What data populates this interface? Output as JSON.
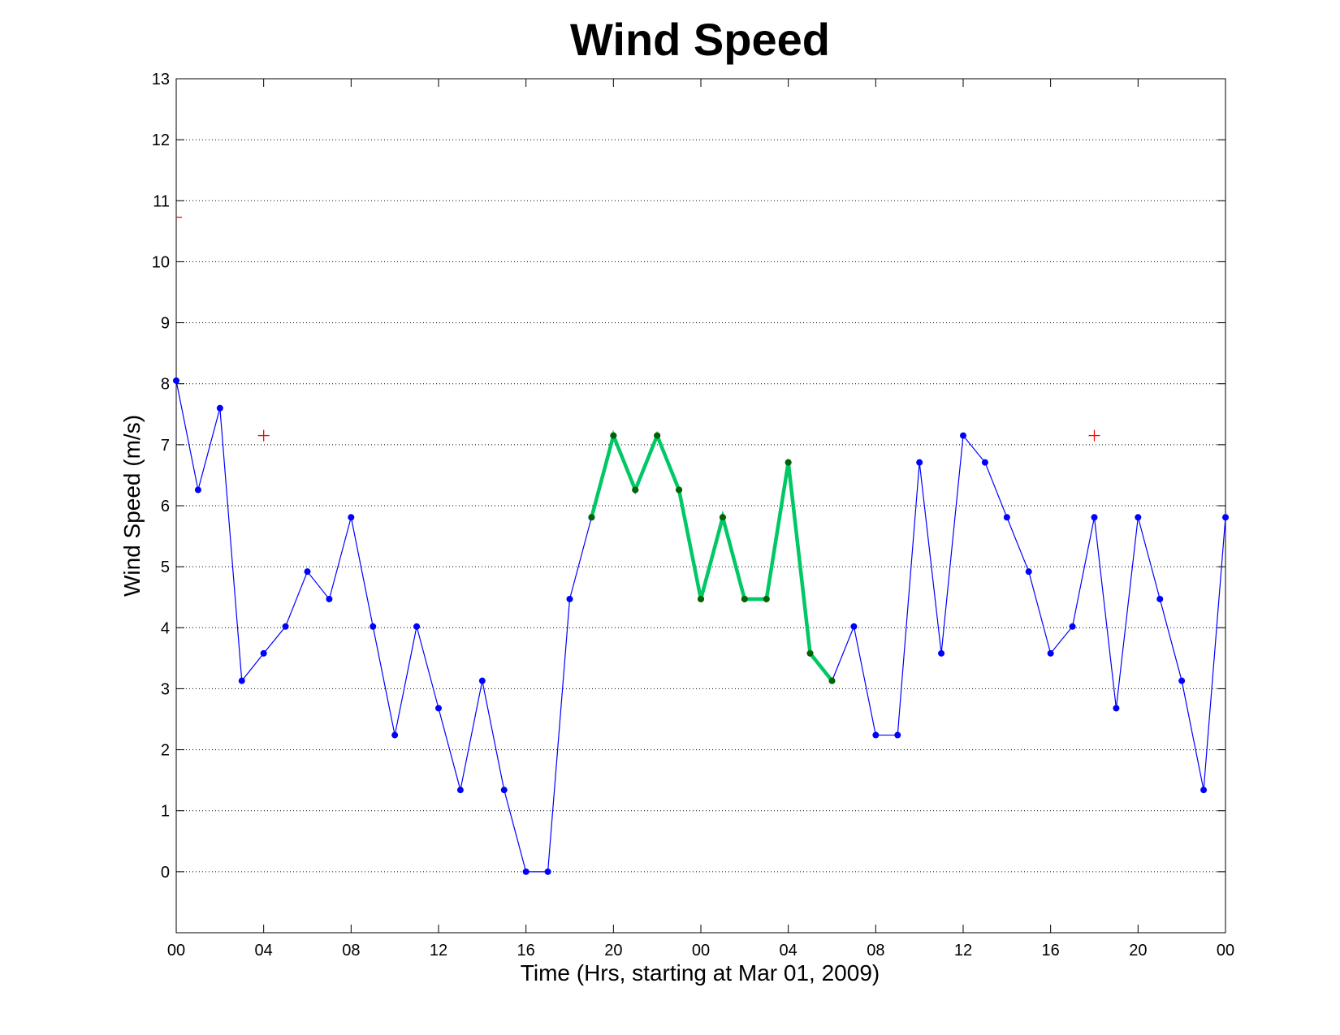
{
  "chart_data": {
    "type": "line",
    "title": "Wind Speed",
    "xlabel": "Time (Hrs, starting at Mar 01, 2009)",
    "ylabel": "Wind Speed (m/s)",
    "ylim": [
      -1,
      13
    ],
    "xlim": [
      0,
      48
    ],
    "grid": "y-dotted",
    "x_tick_positions": [
      0,
      4,
      8,
      12,
      16,
      20,
      24,
      28,
      32,
      36,
      40,
      44,
      48
    ],
    "x_tick_labels": [
      "00",
      "04",
      "08",
      "12",
      "16",
      "20",
      "00",
      "04",
      "08",
      "12",
      "16",
      "20",
      "00"
    ],
    "y_ticks": [
      0,
      1,
      2,
      3,
      4,
      5,
      6,
      7,
      8,
      9,
      10,
      11,
      12,
      13
    ],
    "series": [
      {
        "style": "blue-dots-line",
        "color": "#0000ff",
        "x": [
          0,
          1,
          2,
          3,
          4,
          5,
          6,
          7,
          8,
          9,
          10,
          11,
          12,
          13,
          14,
          15,
          16,
          17,
          18,
          19,
          20,
          21,
          22,
          23,
          24,
          25,
          26,
          27,
          28,
          29,
          30,
          31,
          32,
          33,
          34,
          35,
          36,
          37,
          38,
          39,
          40,
          41,
          42,
          43,
          44,
          45,
          46,
          47,
          48
        ],
        "values": [
          8.05,
          6.26,
          7.6,
          3.13,
          3.58,
          4.02,
          4.92,
          4.47,
          5.81,
          4.02,
          2.24,
          4.02,
          2.68,
          1.34,
          3.13,
          1.34,
          0,
          0,
          4.47,
          5.81,
          7.15,
          6.26,
          7.15,
          6.26,
          4.47,
          5.81,
          4.47,
          4.47,
          6.71,
          3.58,
          3.13,
          4.02,
          2.24,
          2.24,
          6.71,
          3.58,
          7.15,
          6.71,
          5.81,
          4.92,
          3.58,
          4.02,
          5.81,
          2.68,
          5.81,
          4.47,
          3.13,
          1.34,
          5.81
        ]
      },
      {
        "style": "green-highlight",
        "color": "#00c864",
        "marker_color": "#006400",
        "x": [
          19,
          20,
          21,
          22,
          23,
          24,
          25,
          26,
          27,
          28,
          29,
          30
        ],
        "values": [
          5.81,
          7.15,
          6.26,
          7.15,
          6.26,
          4.47,
          5.81,
          4.47,
          4.47,
          6.71,
          3.58,
          3.13
        ]
      }
    ],
    "markers": {
      "style": "red-plus",
      "color": "#ff0000",
      "x": [
        0,
        4,
        42
      ],
      "values": [
        10.73,
        7.15,
        7.15
      ]
    }
  }
}
